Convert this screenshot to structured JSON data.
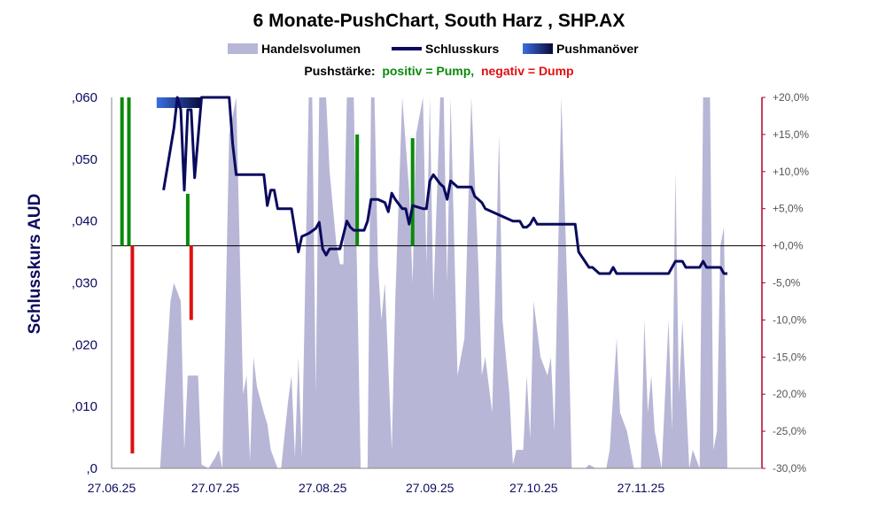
{
  "chart_data": {
    "type": "line",
    "title": "6 Monate-PushChart, South Harz , SHP.AX",
    "legend": [
      "Handelsvolumen",
      "Schlusskurs",
      "Pushmanöver"
    ],
    "legend_placement": "top",
    "push_note": {
      "label": "Pushstärke:",
      "positive": "positiv = Pump,",
      "negative": "negativ = Dump"
    },
    "ylabel": "Schlusskurs AUD",
    "y_left": {
      "min": 0,
      "max": 0.06,
      "ticks": [
        ",060",
        ",050",
        ",040",
        ",030",
        ",020",
        ",010",
        ",0"
      ]
    },
    "y_right": {
      "min": -30,
      "max": 20,
      "ticks": [
        "+20,0%",
        "+15,0%",
        "+10,0%",
        "+5,0%",
        "+0,0%",
        "-5,0%",
        "-10,0%",
        "-15,0%",
        "-20,0%",
        "-25,0%",
        "-30,0%"
      ]
    },
    "x_range": [
      "2025-06-27",
      "2026-01-01"
    ],
    "x_ticks": [
      "27.06.25",
      "27.07.25",
      "27.08.25",
      "27.09.25",
      "27.10.25",
      "27.11.25"
    ],
    "colors": {
      "volume": "#b7b6d6",
      "close": "#0a0a5e",
      "pump": "#0a8a0a",
      "dump": "#e01010",
      "push_start": "#3a6fe0",
      "push_end": "#0a0a3a",
      "right_axis": "#b0002a"
    },
    "close": [
      [
        "2025-07-12",
        0.045
      ],
      [
        "2025-07-15",
        0.055
      ],
      [
        "2025-07-16",
        0.06
      ],
      [
        "2025-07-17",
        0.058
      ],
      [
        "2025-07-18",
        0.045
      ],
      [
        "2025-07-19",
        0.058
      ],
      [
        "2025-07-20",
        0.058
      ],
      [
        "2025-07-21",
        0.047
      ],
      [
        "2025-07-23",
        0.06
      ],
      [
        "2025-07-31",
        0.06
      ],
      [
        "2025-08-01",
        0.0525
      ],
      [
        "2025-08-02",
        0.0475
      ],
      [
        "2025-08-10",
        0.0475
      ],
      [
        "2025-08-11",
        0.0425
      ],
      [
        "2025-08-12",
        0.045
      ],
      [
        "2025-08-13",
        0.045
      ],
      [
        "2025-08-14",
        0.042
      ],
      [
        "2025-08-18",
        0.042
      ],
      [
        "2025-08-19",
        0.0385
      ],
      [
        "2025-08-20",
        0.035
      ],
      [
        "2025-08-21",
        0.0375
      ],
      [
        "2025-08-23",
        0.038
      ],
      [
        "2025-08-25",
        0.0388
      ],
      [
        "2025-08-26",
        0.0398
      ],
      [
        "2025-08-27",
        0.0355
      ],
      [
        "2025-08-28",
        0.0345
      ],
      [
        "2025-08-29",
        0.0355
      ],
      [
        "2025-09-01",
        0.0355
      ],
      [
        "2025-09-03",
        0.04
      ],
      [
        "2025-09-04",
        0.039
      ],
      [
        "2025-09-05",
        0.0385
      ],
      [
        "2025-09-08",
        0.0385
      ],
      [
        "2025-09-09",
        0.04
      ],
      [
        "2025-09-10",
        0.0435
      ],
      [
        "2025-09-12",
        0.0435
      ],
      [
        "2025-09-14",
        0.043
      ],
      [
        "2025-09-15",
        0.0415
      ],
      [
        "2025-09-16",
        0.0445
      ],
      [
        "2025-09-17",
        0.0435
      ],
      [
        "2025-09-19",
        0.042
      ],
      [
        "2025-09-20",
        0.042
      ],
      [
        "2025-09-21",
        0.0395
      ],
      [
        "2025-09-22",
        0.0425
      ],
      [
        "2025-09-25",
        0.042
      ],
      [
        "2025-09-26",
        0.042
      ],
      [
        "2025-09-27",
        0.0465
      ],
      [
        "2025-09-28",
        0.0475
      ],
      [
        "2025-09-30",
        0.046
      ],
      [
        "2025-10-01",
        0.0455
      ],
      [
        "2025-10-02",
        0.0435
      ],
      [
        "2025-10-03",
        0.0465
      ],
      [
        "2025-10-05",
        0.0455
      ],
      [
        "2025-10-09",
        0.0455
      ],
      [
        "2025-10-10",
        0.044
      ],
      [
        "2025-10-12",
        0.043
      ],
      [
        "2025-10-13",
        0.042
      ],
      [
        "2025-10-15",
        0.0415
      ],
      [
        "2025-10-19",
        0.0405
      ],
      [
        "2025-10-21",
        0.04
      ],
      [
        "2025-10-23",
        0.04
      ],
      [
        "2025-10-24",
        0.039
      ],
      [
        "2025-10-25",
        0.039
      ],
      [
        "2025-10-26",
        0.0395
      ],
      [
        "2025-10-27",
        0.0405
      ],
      [
        "2025-10-28",
        0.0395
      ],
      [
        "2025-11-08",
        0.0395
      ],
      [
        "2025-11-09",
        0.035
      ],
      [
        "2025-11-12",
        0.0325
      ],
      [
        "2025-11-13",
        0.0325
      ],
      [
        "2025-11-15",
        0.0315
      ],
      [
        "2025-11-18",
        0.0315
      ],
      [
        "2025-11-19",
        0.0325
      ],
      [
        "2025-11-20",
        0.0315
      ],
      [
        "2025-12-05",
        0.0315
      ],
      [
        "2025-12-07",
        0.0335
      ],
      [
        "2025-12-08",
        0.0335
      ],
      [
        "2025-12-09",
        0.0335
      ],
      [
        "2025-12-10",
        0.0325
      ],
      [
        "2025-12-14",
        0.0325
      ],
      [
        "2025-12-15",
        0.0335
      ],
      [
        "2025-12-16",
        0.0325
      ],
      [
        "2025-12-20",
        0.0325
      ],
      [
        "2025-12-21",
        0.0315
      ],
      [
        "2025-12-22",
        0.0315
      ]
    ],
    "volume_pct": [
      [
        "2025-06-27",
        0
      ],
      [
        "2025-07-11",
        0
      ],
      [
        "2025-07-14",
        45
      ],
      [
        "2025-07-15",
        50
      ],
      [
        "2025-07-17",
        45
      ],
      [
        "2025-07-18",
        5
      ],
      [
        "2025-07-19",
        25
      ],
      [
        "2025-07-22",
        25
      ],
      [
        "2025-07-23",
        1
      ],
      [
        "2025-07-25",
        0
      ],
      [
        "2025-07-27",
        3
      ],
      [
        "2025-07-28",
        5
      ],
      [
        "2025-07-29",
        0
      ],
      [
        "2025-07-31",
        90
      ],
      [
        "2025-08-01",
        95
      ],
      [
        "2025-08-02",
        100
      ],
      [
        "2025-08-04",
        20
      ],
      [
        "2025-08-05",
        25
      ],
      [
        "2025-08-06",
        2
      ],
      [
        "2025-08-07",
        30
      ],
      [
        "2025-08-08",
        22
      ],
      [
        "2025-08-10",
        15
      ],
      [
        "2025-08-11",
        12
      ],
      [
        "2025-08-12",
        5
      ],
      [
        "2025-08-14",
        0
      ],
      [
        "2025-08-15",
        0
      ],
      [
        "2025-08-17",
        18
      ],
      [
        "2025-08-18",
        25
      ],
      [
        "2025-08-19",
        3
      ],
      [
        "2025-08-20",
        30
      ],
      [
        "2025-08-21",
        3
      ],
      [
        "2025-08-23",
        100
      ],
      [
        "2025-08-24",
        100
      ],
      [
        "2025-08-25",
        20
      ],
      [
        "2025-08-26",
        100
      ],
      [
        "2025-08-28",
        100
      ],
      [
        "2025-08-29",
        80
      ],
      [
        "2025-08-31",
        60
      ],
      [
        "2025-09-01",
        55
      ],
      [
        "2025-09-02",
        55
      ],
      [
        "2025-09-03",
        100
      ],
      [
        "2025-09-05",
        100
      ],
      [
        "2025-09-07",
        0
      ],
      [
        "2025-09-09",
        0
      ],
      [
        "2025-09-10",
        100
      ],
      [
        "2025-09-11",
        100
      ],
      [
        "2025-09-12",
        55
      ],
      [
        "2025-09-13",
        40
      ],
      [
        "2025-09-14",
        50
      ],
      [
        "2025-09-16",
        5
      ],
      [
        "2025-09-17",
        45
      ],
      [
        "2025-09-19",
        100
      ],
      [
        "2025-09-21",
        75
      ],
      [
        "2025-09-22",
        50
      ],
      [
        "2025-09-23",
        90
      ],
      [
        "2025-09-25",
        100
      ],
      [
        "2025-09-26",
        55
      ],
      [
        "2025-09-27",
        100
      ],
      [
        "2025-09-28",
        45
      ],
      [
        "2025-09-30",
        100
      ],
      [
        "2025-10-01",
        100
      ],
      [
        "2025-10-02",
        50
      ],
      [
        "2025-10-03",
        100
      ],
      [
        "2025-10-05",
        25
      ],
      [
        "2025-10-07",
        35
      ],
      [
        "2025-10-09",
        100
      ],
      [
        "2025-10-11",
        55
      ],
      [
        "2025-10-12",
        25
      ],
      [
        "2025-10-13",
        30
      ],
      [
        "2025-10-15",
        15
      ],
      [
        "2025-10-17",
        90
      ],
      [
        "2025-10-18",
        40
      ],
      [
        "2025-10-20",
        20
      ],
      [
        "2025-10-21",
        1
      ],
      [
        "2025-10-22",
        5
      ],
      [
        "2025-10-24",
        5
      ],
      [
        "2025-10-25",
        25
      ],
      [
        "2025-10-26",
        8
      ],
      [
        "2025-10-27",
        45
      ],
      [
        "2025-10-29",
        30
      ],
      [
        "2025-10-31",
        25
      ],
      [
        "2025-11-01",
        30
      ],
      [
        "2025-11-02",
        10
      ],
      [
        "2025-11-04",
        100
      ],
      [
        "2025-11-06",
        40
      ],
      [
        "2025-11-07",
        0
      ],
      [
        "2025-11-11",
        0
      ],
      [
        "2025-11-12",
        1
      ],
      [
        "2025-11-14",
        0
      ],
      [
        "2025-11-17",
        0
      ],
      [
        "2025-11-18",
        5
      ],
      [
        "2025-11-20",
        35
      ],
      [
        "2025-11-21",
        15
      ],
      [
        "2025-11-23",
        10
      ],
      [
        "2025-11-25",
        0
      ],
      [
        "2025-11-27",
        0
      ],
      [
        "2025-11-28",
        40
      ],
      [
        "2025-11-29",
        15
      ],
      [
        "2025-11-30",
        25
      ],
      [
        "2025-12-01",
        10
      ],
      [
        "2025-12-03",
        0
      ],
      [
        "2025-12-05",
        40
      ],
      [
        "2025-12-06",
        10
      ],
      [
        "2025-12-07",
        80
      ],
      [
        "2025-12-08",
        20
      ],
      [
        "2025-12-09",
        40
      ],
      [
        "2025-12-11",
        0
      ],
      [
        "2025-12-12",
        5
      ],
      [
        "2025-12-14",
        0
      ],
      [
        "2025-12-15",
        100
      ],
      [
        "2025-12-17",
        100
      ],
      [
        "2025-12-18",
        5
      ],
      [
        "2025-12-19",
        10
      ],
      [
        "2025-12-20",
        60
      ],
      [
        "2025-12-21",
        65
      ],
      [
        "2025-12-22",
        0
      ]
    ],
    "push_bars": [
      [
        "2025-06-30",
        20.0
      ],
      [
        "2025-07-02",
        20.0
      ],
      [
        "2025-07-03",
        -28.0
      ],
      [
        "2025-07-19",
        7.0
      ],
      [
        "2025-07-20",
        -10.0
      ],
      [
        "2025-09-06",
        15.0
      ],
      [
        "2025-09-22",
        14.5
      ]
    ],
    "push_maneuver": {
      "start": "2025-07-10",
      "end": "2025-07-23",
      "value": 0.06
    }
  }
}
